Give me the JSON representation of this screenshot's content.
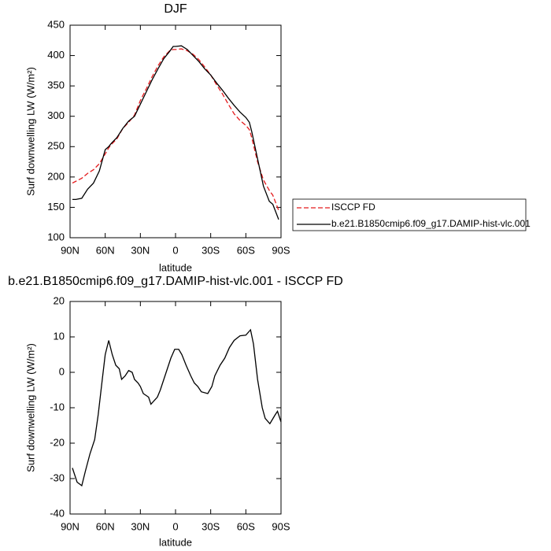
{
  "chart_data": [
    {
      "type": "line",
      "title": "DJF",
      "xlabel": "latitude",
      "ylabel": "Surf downwelling LW (W/m²)",
      "x": [
        88,
        85,
        80,
        75,
        70,
        65,
        60,
        57,
        55,
        50,
        45,
        40,
        35,
        30,
        25,
        20,
        15,
        10,
        5,
        2,
        0,
        -5,
        -10,
        -15,
        -20,
        -25,
        -30,
        -35,
        -40,
        -45,
        -50,
        -55,
        -60,
        -63,
        -65,
        -70,
        -75,
        -80,
        -83,
        -88
      ],
      "series": [
        {
          "name": "ISCCP FD",
          "color": "#e41a1c",
          "dash": true,
          "values": [
            190,
            193,
            198,
            206,
            212,
            222,
            238,
            248,
            253,
            263,
            280,
            290,
            302,
            326,
            345,
            365,
            383,
            398,
            408,
            410,
            410,
            411,
            408,
            402,
            393,
            381,
            368,
            352,
            337,
            320,
            304,
            293,
            285,
            278,
            265,
            225,
            195,
            178,
            170,
            145
          ]
        },
        {
          "name": "b.e21.B1850cmip6.f09_g17.DAMIP-hist-vlc.001",
          "color": "#000000",
          "dash": false,
          "values": [
            163,
            163,
            165,
            180,
            190,
            210,
            245,
            250,
            255,
            265,
            280,
            292,
            300,
            320,
            340,
            360,
            378,
            395,
            407,
            415,
            415,
            416,
            410,
            400,
            390,
            378,
            368,
            355,
            343,
            330,
            318,
            307,
            298,
            290,
            275,
            230,
            185,
            160,
            155,
            130
          ]
        }
      ],
      "xlim": [
        90,
        -90
      ],
      "xticks": [
        {
          "value": 90,
          "label": "90N"
        },
        {
          "value": 60,
          "label": "60N"
        },
        {
          "value": 30,
          "label": "30N"
        },
        0,
        {
          "value": -30,
          "label": "30S"
        },
        {
          "value": -60,
          "label": "60S"
        },
        {
          "value": -90,
          "label": "90S"
        }
      ],
      "ylim": [
        100,
        450
      ],
      "yticks": [
        100,
        150,
        200,
        250,
        300,
        350,
        400,
        450
      ],
      "legend": "right"
    },
    {
      "type": "line",
      "title": "b.e21.B1850cmip6.f09_g17.DAMIP-hist-vlc.001 - ISCCP FD",
      "xlabel": "latitude",
      "ylabel": "Surf downwelling LW (W/m²)",
      "x": [
        88,
        84,
        80,
        77,
        73,
        69,
        66,
        62.5,
        60,
        57,
        54,
        51,
        48,
        46,
        43,
        40,
        37,
        35,
        32,
        30,
        27.5,
        23,
        21,
        15.5,
        13,
        11,
        7,
        4,
        0.7,
        -2.7,
        -5.4,
        -9,
        -13,
        -16,
        -19,
        -22,
        -27.5,
        -31,
        -33.5,
        -38,
        -42,
        -46,
        -50,
        -55,
        -60,
        -64,
        -66.5,
        -70,
        -74,
        -76.5,
        -80.5,
        -85,
        -87,
        -90
      ],
      "values": [
        -27,
        -31,
        -32,
        -28,
        -23,
        -19,
        -12,
        -2,
        5,
        9,
        5,
        2,
        1,
        -2,
        -1,
        0.5,
        0,
        -2,
        -3,
        -4,
        -6,
        -7,
        -9,
        -7,
        -5,
        -3,
        1,
        4,
        6.5,
        6.5,
        5,
        2,
        -1,
        -3,
        -4,
        -5.5,
        -6,
        -4,
        -1,
        2,
        4,
        7,
        9,
        10.3,
        10.5,
        12,
        8,
        -2,
        -10,
        -13,
        -14.5,
        -12,
        -11,
        -14
      ],
      "color": "#000000",
      "xlim": [
        90,
        -90
      ],
      "xticks": [
        {
          "value": 90,
          "label": "90N"
        },
        {
          "value": 60,
          "label": "60N"
        },
        {
          "value": 30,
          "label": "30N"
        },
        0,
        {
          "value": -30,
          "label": "30S"
        },
        {
          "value": -60,
          "label": "60S"
        },
        {
          "value": -90,
          "label": "90S"
        }
      ],
      "ylim": [
        -40,
        20
      ],
      "yticks": [
        -40,
        -30,
        -20,
        -10,
        0,
        10,
        20
      ]
    }
  ]
}
